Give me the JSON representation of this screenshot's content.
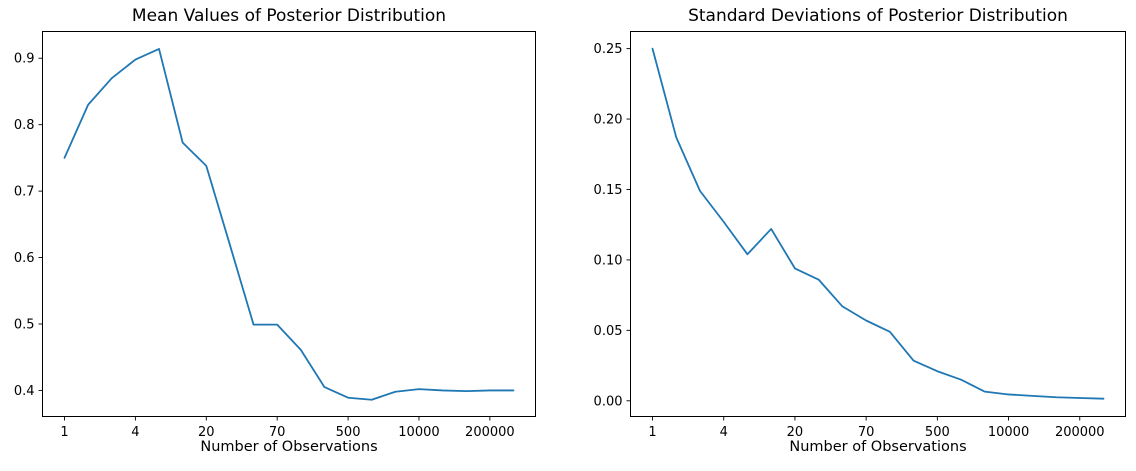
{
  "figure": {
    "background": "#ffffff"
  },
  "chart_data": [
    {
      "type": "line",
      "title": "Mean Values of Posterior Distribution",
      "xlabel": "Number of Observations",
      "ylabel": "",
      "x_tick_labels": [
        "1",
        "4",
        "20",
        "70",
        "500",
        "10000",
        "200000"
      ],
      "x_tick_indices": [
        0,
        3,
        6,
        9,
        12,
        15,
        18
      ],
      "y_tick_labels": [
        "0.9",
        "0.8",
        "0.7",
        "0.6",
        "0.5",
        "0.4"
      ],
      "y_tick_values": [
        0.9,
        0.8,
        0.7,
        0.6,
        0.5,
        0.4
      ],
      "ylim": [
        0.36,
        0.941
      ],
      "grid": false,
      "legend": false,
      "line_color": "#1f77b4",
      "values": [
        0.75,
        0.83,
        0.87,
        0.898,
        0.914,
        0.773,
        0.738,
        0.619,
        0.499,
        0.499,
        0.461,
        0.405,
        0.389,
        0.386,
        0.398,
        0.402,
        0.4,
        0.399,
        0.4,
        0.4
      ]
    },
    {
      "type": "line",
      "title": "Standard Deviations of Posterior Distribution",
      "xlabel": "Number of Observations",
      "ylabel": "",
      "x_tick_labels": [
        "1",
        "4",
        "20",
        "70",
        "500",
        "10000",
        "200000"
      ],
      "x_tick_indices": [
        0,
        3,
        6,
        9,
        12,
        15,
        18
      ],
      "y_tick_labels": [
        "0.25",
        "0.20",
        "0.15",
        "0.10",
        "0.05",
        "0.00"
      ],
      "y_tick_values": [
        0.25,
        0.2,
        0.15,
        0.1,
        0.05,
        0.0
      ],
      "ylim": [
        -0.0115,
        0.2625
      ],
      "grid": false,
      "legend": false,
      "line_color": "#1f77b4",
      "values": [
        0.25,
        0.187,
        0.149,
        0.127,
        0.104,
        0.122,
        0.094,
        0.086,
        0.067,
        0.057,
        0.049,
        0.0285,
        0.021,
        0.015,
        0.0065,
        0.0045,
        0.0035,
        0.0025,
        0.002,
        0.0015
      ]
    }
  ]
}
